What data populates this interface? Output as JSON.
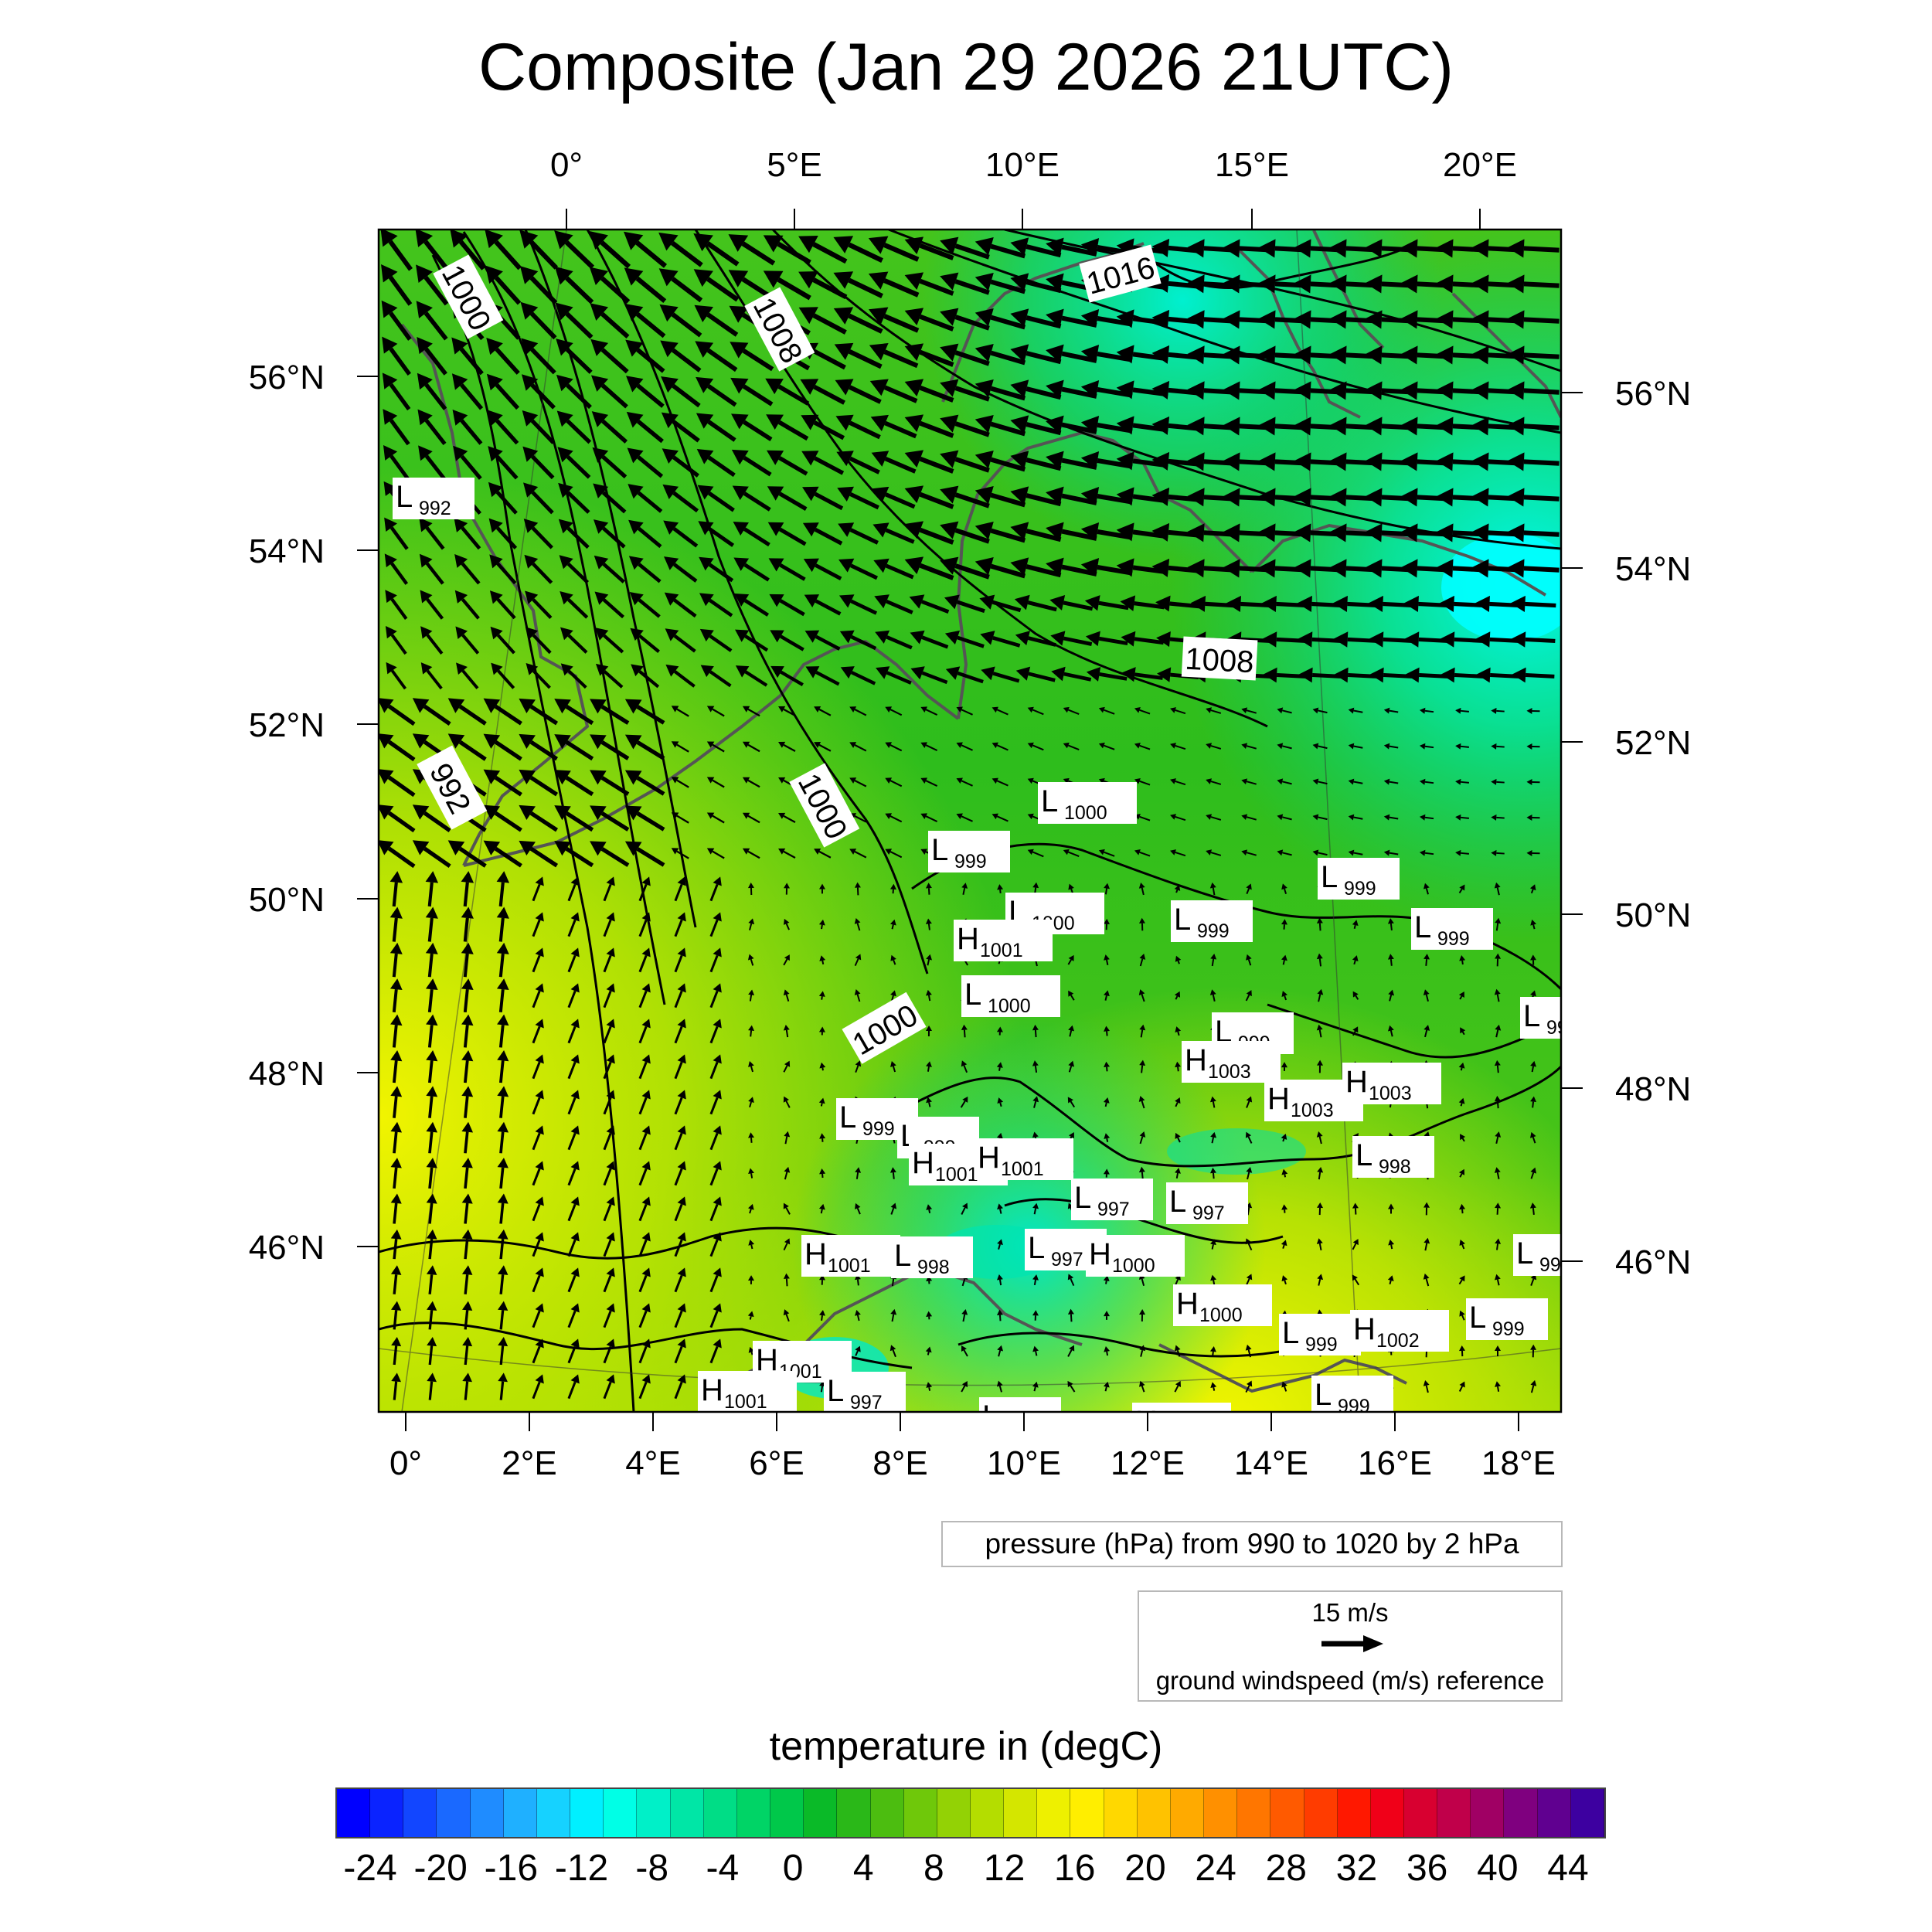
{
  "title": "Composite (Jan 29 2026 21UTC)",
  "top_lon_labels": [
    "0°",
    "5°E",
    "10°E",
    "15°E",
    "20°E"
  ],
  "bottom_lon_labels": [
    "0°",
    "2°E",
    "4°E",
    "6°E",
    "8°E",
    "10°E",
    "12°E",
    "14°E",
    "16°E",
    "18°E"
  ],
  "left_lat_labels": [
    "56°N",
    "54°N",
    "52°N",
    "50°N",
    "48°N",
    "46°N"
  ],
  "right_lat_labels": [
    "56°N",
    "54°N",
    "52°N",
    "50°N",
    "48°N",
    "46°N"
  ],
  "contour_labels": [
    "1000",
    "1008",
    "1016",
    "992",
    "1000",
    "1008",
    "1000"
  ],
  "pressure_centers": [
    {
      "type": "L",
      "value": "992"
    },
    {
      "type": "L",
      "value": "1000"
    },
    {
      "type": "L",
      "value": "999"
    },
    {
      "type": "L",
      "value": "999"
    },
    {
      "type": "L",
      "value": "1000"
    },
    {
      "type": "L",
      "value": "999"
    },
    {
      "type": "H",
      "value": "1001"
    },
    {
      "type": "L",
      "value": "999"
    },
    {
      "type": "L",
      "value": "1000"
    },
    {
      "type": "L",
      "value": "99"
    },
    {
      "type": "L",
      "value": "999"
    },
    {
      "type": "H",
      "value": "1003"
    },
    {
      "type": "H",
      "value": "1003"
    },
    {
      "type": "H",
      "value": "1003"
    },
    {
      "type": "L",
      "value": "999"
    },
    {
      "type": "L",
      "value": "999"
    },
    {
      "type": "H",
      "value": "1001"
    },
    {
      "type": "H",
      "value": "1001"
    },
    {
      "type": "L",
      "value": "998"
    },
    {
      "type": "L",
      "value": "997"
    },
    {
      "type": "L",
      "value": "997"
    },
    {
      "type": "H",
      "value": "1001"
    },
    {
      "type": "L",
      "value": "998"
    },
    {
      "type": "L",
      "value": "997"
    },
    {
      "type": "H",
      "value": "1000"
    },
    {
      "type": "L",
      "value": "999"
    },
    {
      "type": "H",
      "value": "1000"
    },
    {
      "type": "L",
      "value": "999"
    },
    {
      "type": "H",
      "value": "1002"
    },
    {
      "type": "L",
      "value": "999"
    },
    {
      "type": "H",
      "value": "1001"
    },
    {
      "type": "H",
      "value": "1001"
    },
    {
      "type": "L",
      "value": "997"
    },
    {
      "type": "L",
      "value": "999"
    },
    {
      "type": "H",
      "value": "1000"
    },
    {
      "type": "L",
      "value": "999"
    }
  ],
  "pressure_note": "pressure (hPa) from 990 to 1020 by 2 hPa",
  "wind_reference": {
    "speed_label": "15 m/s",
    "caption": "ground windspeed (m/s) reference"
  },
  "colorbar": {
    "title": "temperature in (degC)",
    "tick_labels": [
      "-24",
      "-20",
      "-16",
      "-12",
      "-8",
      "-4",
      "0",
      "4",
      "8",
      "12",
      "16",
      "20",
      "24",
      "28",
      "32",
      "36",
      "40",
      "44"
    ],
    "colors": [
      "#0000ff",
      "#0a23ff",
      "#1246ff",
      "#1a69ff",
      "#1f8cff",
      "#1fb0ff",
      "#16d2ff",
      "#00f0ff",
      "#00ffe6",
      "#00f0c8",
      "#00e6a6",
      "#00dd86",
      "#00d466",
      "#00c84a",
      "#0aba28",
      "#2ab818",
      "#4cbd10",
      "#6fc80a",
      "#93d205",
      "#b4dd00",
      "#d4e600",
      "#eef000",
      "#ffee00",
      "#ffd800",
      "#ffc200",
      "#ffaa00",
      "#ff9000",
      "#ff7600",
      "#ff5a00",
      "#ff3c00",
      "#ff1800",
      "#f00018",
      "#d80030",
      "#c0004a",
      "#a00064",
      "#7f007f",
      "#600090",
      "#3d00a0"
    ]
  },
  "colors": {
    "map_green": "#3ec21a",
    "warm_yellow": "#dfee00",
    "cold_cyan": "#00f5f5",
    "contour": "#000000",
    "coastline": "#555555"
  }
}
